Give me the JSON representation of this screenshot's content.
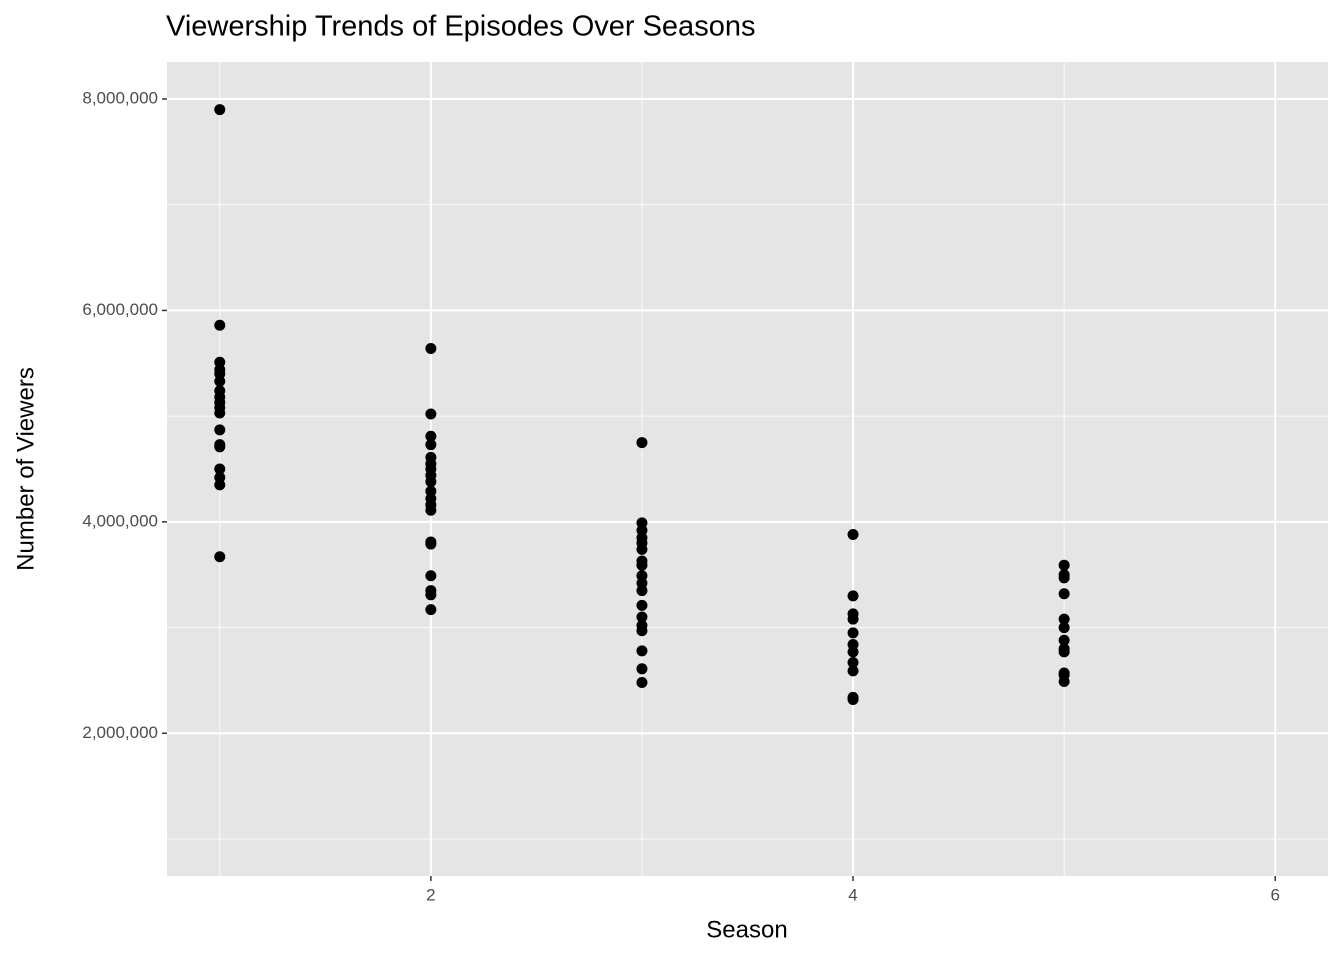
{
  "chart_data": {
    "type": "scatter",
    "title": "Viewership Trends of Episodes Over Seasons",
    "x_label": "Season",
    "y_label": "Number of Viewers",
    "color": "#000000",
    "grid": true,
    "panel_color": "#e5e5e5",
    "xlim": [
      0.75,
      6.25
    ],
    "xticks": [
      2,
      4,
      6
    ],
    "minor_xticks": [
      1,
      3,
      5
    ],
    "ylim": [
      650000,
      8350000
    ],
    "yticks": [
      {
        "value": 2000000,
        "label": "2,000,000"
      },
      {
        "value": 4000000,
        "label": "4,000,000"
      },
      {
        "value": 6000000,
        "label": "6,000,000"
      },
      {
        "value": 8000000,
        "label": "8,000,000"
      }
    ],
    "minor_yticks": [
      1000000,
      3000000,
      5000000,
      7000000
    ],
    "x": [
      1,
      1,
      1,
      1,
      1,
      1,
      1,
      1,
      1,
      1,
      1,
      1,
      1,
      1,
      1,
      1,
      1,
      1,
      2,
      2,
      2,
      2,
      2,
      2,
      2,
      2,
      2,
      2,
      2,
      2,
      2,
      2,
      2,
      2,
      2,
      2,
      2,
      3,
      3,
      3,
      3,
      3,
      3,
      3,
      3,
      3,
      3,
      3,
      3,
      3,
      3,
      3,
      3,
      3,
      3,
      4,
      4,
      4,
      4,
      4,
      4,
      4,
      4,
      4,
      4,
      4,
      5,
      5,
      5,
      5,
      5,
      5,
      5,
      5,
      5,
      5,
      5,
      5
    ],
    "values": [
      7900000,
      5860000,
      5510000,
      5440000,
      5400000,
      5330000,
      5240000,
      5180000,
      5130000,
      5080000,
      5030000,
      4870000,
      4730000,
      4710000,
      4500000,
      4420000,
      4350000,
      3670000,
      5640000,
      5020000,
      4810000,
      4730000,
      4610000,
      4550000,
      4500000,
      4440000,
      4380000,
      4290000,
      4220000,
      4160000,
      4110000,
      3810000,
      3790000,
      3490000,
      3350000,
      3310000,
      3170000,
      4750000,
      3990000,
      3920000,
      3850000,
      3800000,
      3740000,
      3630000,
      3590000,
      3490000,
      3420000,
      3350000,
      3210000,
      3100000,
      3020000,
      2970000,
      2780000,
      2610000,
      2480000,
      3880000,
      3300000,
      3130000,
      3080000,
      2950000,
      2840000,
      2770000,
      2670000,
      2590000,
      2340000,
      2320000,
      3590000,
      3500000,
      3470000,
      3320000,
      3080000,
      3000000,
      2880000,
      2800000,
      2770000,
      2570000,
      2550000,
      2490000
    ]
  }
}
